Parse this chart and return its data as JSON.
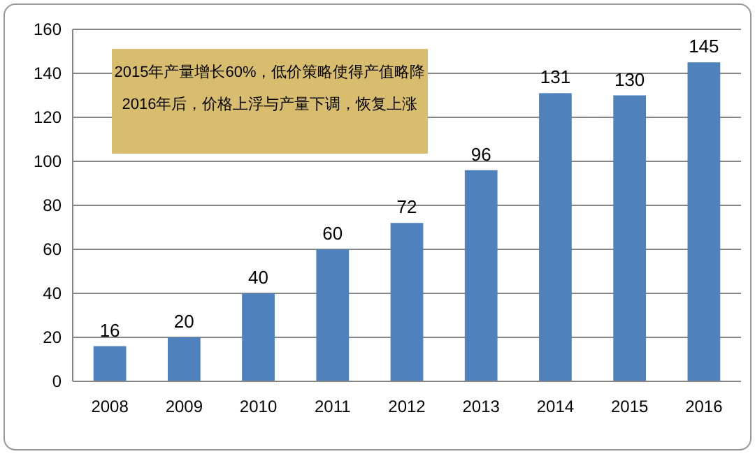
{
  "chart_data": {
    "type": "bar",
    "categories": [
      "2008",
      "2009",
      "2010",
      "2011",
      "2012",
      "2013",
      "2014",
      "2015",
      "2016"
    ],
    "values": [
      16,
      20,
      40,
      60,
      72,
      96,
      131,
      130,
      145
    ],
    "color": "#4f81bd",
    "data_labels": true,
    "ylim": [
      0,
      160
    ],
    "yticks": [
      0,
      20,
      40,
      60,
      80,
      100,
      120,
      140,
      160
    ],
    "grid": "y",
    "annotations": [
      "2015年产量增长60%，低价策略使得产值略降",
      "2016年后，价格上浮与产量下调，恢复上涨"
    ]
  }
}
